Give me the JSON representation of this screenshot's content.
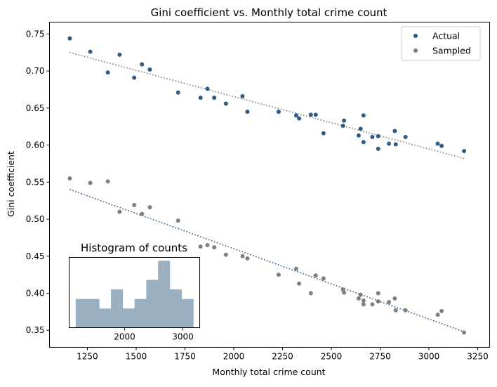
{
  "chart_data": [
    {
      "type": "scatter",
      "title": "Gini coefficient vs. Monthly total crime count",
      "xlabel": "Monthly total crime count",
      "ylabel": "Gini coefficient",
      "xlim": [
        1056,
        3311
      ],
      "ylim": [
        0.327,
        0.766
      ],
      "xticks": [
        1250,
        1500,
        1750,
        2000,
        2250,
        2500,
        2750,
        3000,
        3250
      ],
      "yticks": [
        0.35,
        0.4,
        0.45,
        0.5,
        0.55,
        0.6,
        0.65,
        0.7,
        0.75
      ],
      "ytick_labels": [
        "0.35",
        "0.40",
        "0.45",
        "0.50",
        "0.55",
        "0.60",
        "0.65",
        "0.70",
        "0.75"
      ],
      "grid": false,
      "legend_position": "top-right",
      "x": [
        1160,
        1265,
        1355,
        1415,
        1490,
        1530,
        1570,
        1715,
        1830,
        1865,
        1900,
        1960,
        2045,
        2070,
        2230,
        2320,
        2335,
        2395,
        2420,
        2460,
        2560,
        2565,
        2640,
        2650,
        2665,
        2665,
        2710,
        2740,
        2740,
        2795,
        2825,
        2830,
        2880,
        3045,
        3065,
        3180
      ],
      "series": [
        {
          "name": "Actual",
          "color": "#2e5c87",
          "values": [
            0.744,
            0.726,
            0.698,
            0.722,
            0.691,
            0.709,
            0.702,
            0.671,
            0.664,
            0.676,
            0.664,
            0.656,
            0.666,
            0.645,
            0.645,
            0.64,
            0.636,
            0.641,
            0.641,
            0.616,
            0.626,
            0.633,
            0.613,
            0.622,
            0.604,
            0.64,
            0.611,
            0.595,
            0.612,
            0.602,
            0.619,
            0.601,
            0.611,
            0.602,
            0.599,
            0.592
          ],
          "trend": {
            "x": [
              1160,
              3180
            ],
            "y": [
              0.725,
              0.582
            ],
            "color": "#808080",
            "style": "dotted"
          }
        },
        {
          "name": "Sampled",
          "color": "#808080",
          "values": [
            0.555,
            0.549,
            0.551,
            0.51,
            0.519,
            0.507,
            0.516,
            0.498,
            0.463,
            0.465,
            0.462,
            0.452,
            0.45,
            0.447,
            0.425,
            0.433,
            0.413,
            0.4,
            0.424,
            0.42,
            0.405,
            0.401,
            0.393,
            0.398,
            0.385,
            0.39,
            0.385,
            0.4,
            0.389,
            0.388,
            0.393,
            0.377,
            0.377,
            0.371,
            0.376,
            0.347
          ],
          "trend": {
            "x": [
              1160,
              3180
            ],
            "y": [
              0.54,
              0.348
            ],
            "color": "#2e5c87",
            "style": "dotted"
          }
        }
      ]
    },
    {
      "type": "bar",
      "title": "Histogram of counts",
      "bin_edges": [
        1160,
        1362,
        1564,
        1766,
        1968,
        2170,
        2372,
        2574,
        2776,
        2978,
        3180
      ],
      "values": [
        3,
        3,
        2,
        4,
        2,
        3,
        5,
        7,
        4,
        3
      ],
      "xlim": [
        1048,
        3289
      ],
      "ylim": [
        0,
        7.35
      ],
      "xticks": [
        2000,
        3000
      ],
      "color": "#9aafbf"
    }
  ]
}
